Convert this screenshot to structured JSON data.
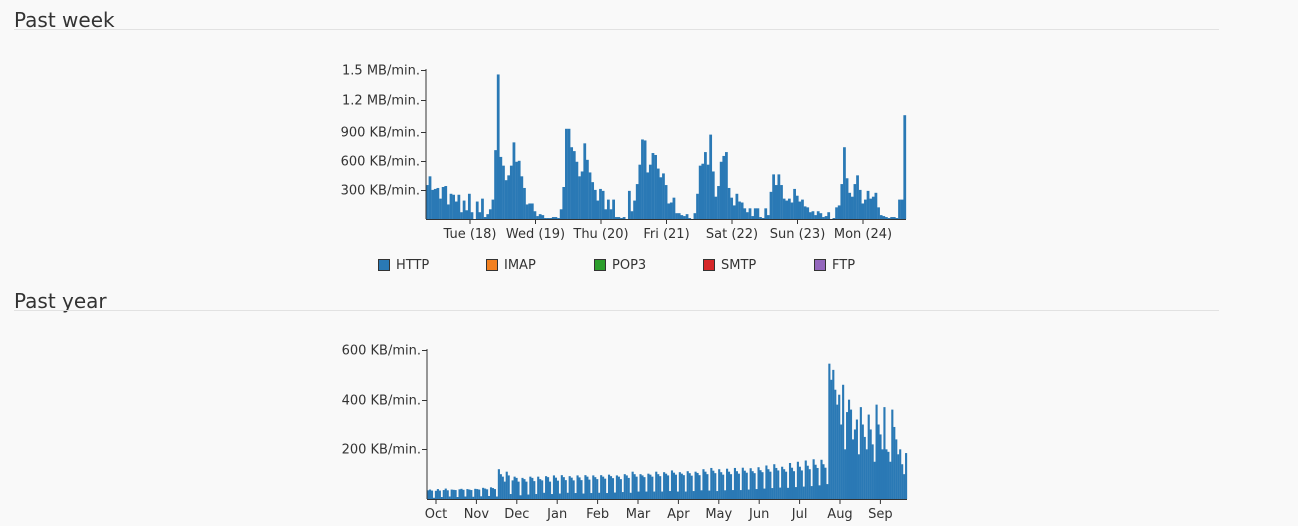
{
  "sections": [
    {
      "title": "Past week"
    },
    {
      "title": "Past year"
    }
  ],
  "legend": [
    {
      "label": "HTTP",
      "color": "#2a79b5"
    },
    {
      "label": "IMAP",
      "color": "#f28020"
    },
    {
      "label": "POP3",
      "color": "#2c9e2c"
    },
    {
      "label": "SMTP",
      "color": "#d62728"
    },
    {
      "label": "FTP",
      "color": "#9467bd"
    }
  ],
  "chart_data": [
    {
      "type": "bar",
      "title": "Past week",
      "series": [
        {
          "name": "HTTP",
          "color": "#2a79b5"
        }
      ],
      "unit_kb_per_min": true,
      "ylim": [
        0,
        1536
      ],
      "y_ticks": [
        {
          "value": 300,
          "label": "300 KB/min."
        },
        {
          "value": 600,
          "label": "600 KB/min."
        },
        {
          "value": 900,
          "label": "900 KB/min."
        },
        {
          "value": 1228.8,
          "label": "1.2 MB/min."
        },
        {
          "value": 1536,
          "label": "1.5 MB/min."
        }
      ],
      "x_ticks": [
        "Tue (18)",
        "Wed (19)",
        "Thu (20)",
        "Fri (21)",
        "Sat (22)",
        "Sun (23)",
        "Mon (24)"
      ],
      "values": [
        350,
        440,
        300,
        310,
        320,
        210,
        330,
        340,
        150,
        260,
        250,
        180,
        250,
        70,
        190,
        90,
        260,
        70,
        0,
        180,
        70,
        210,
        20,
        50,
        100,
        200,
        710,
        1490,
        640,
        550,
        400,
        450,
        550,
        790,
        590,
        600,
        440,
        320,
        150,
        160,
        160,
        80,
        30,
        50,
        40,
        10,
        10,
        10,
        20,
        20,
        10,
        100,
        330,
        930,
        930,
        740,
        700,
        590,
        440,
        490,
        780,
        610,
        480,
        380,
        300,
        190,
        310,
        290,
        100,
        200,
        100,
        200,
        20,
        20,
        10,
        20,
        0,
        290,
        80,
        190,
        360,
        560,
        820,
        810,
        480,
        560,
        680,
        660,
        520,
        430,
        470,
        350,
        160,
        170,
        220,
        60,
        60,
        40,
        30,
        50,
        10,
        0,
        60,
        260,
        550,
        570,
        690,
        560,
        870,
        490,
        230,
        340,
        590,
        650,
        690,
        320,
        220,
        140,
        260,
        180,
        170,
        110,
        70,
        110,
        30,
        110,
        110,
        20,
        10,
        110,
        40,
        280,
        460,
        350,
        460,
        350,
        210,
        190,
        210,
        170,
        310,
        240,
        180,
        200,
        130,
        120,
        70,
        80,
        40,
        80,
        60,
        20,
        30,
        70,
        0,
        10,
        120,
        140,
        360,
        740,
        420,
        270,
        230,
        360,
        450,
        300,
        160,
        200,
        290,
        210,
        230,
        270,
        120,
        40,
        30,
        20,
        10,
        20,
        20,
        10,
        200,
        200,
        1070
      ]
    },
    {
      "type": "bar",
      "title": "Past year",
      "series": [
        {
          "name": "HTTP",
          "color": "#2a79b5"
        }
      ],
      "ylim": [
        0,
        600
      ],
      "y_ticks": [
        {
          "value": 200,
          "label": "200 KB/min."
        },
        {
          "value": 400,
          "label": "400 KB/min."
        },
        {
          "value": 600,
          "label": "600 KB/min."
        }
      ],
      "x_ticks": [
        "Oct",
        "Nov",
        "Dec",
        "Jan",
        "Feb",
        "Mar",
        "Apr",
        "May",
        "Jun",
        "Jul",
        "Aug",
        "Sep"
      ],
      "values": [
        35,
        38,
        34,
        5,
        33,
        40,
        34,
        8,
        36,
        42,
        35,
        10,
        38,
        37,
        36,
        8,
        39,
        41,
        37,
        10,
        40,
        38,
        36,
        9,
        41,
        40,
        38,
        11,
        45,
        42,
        39,
        12,
        47,
        44,
        40,
        10,
        120,
        100,
        90,
        70,
        110,
        95,
        20,
        75,
        90,
        85,
        70,
        15,
        85,
        80,
        70,
        18,
        90,
        85,
        72,
        20,
        90,
        80,
        75,
        25,
        92,
        88,
        70,
        20,
        95,
        86,
        74,
        22,
        96,
        88,
        76,
        25,
        92,
        86,
        75,
        24,
        95,
        87,
        76,
        22,
        96,
        90,
        78,
        24,
        95,
        88,
        80,
        25,
        96,
        90,
        82,
        24,
        98,
        92,
        84,
        26,
        95,
        90,
        80,
        28,
        100,
        95,
        85,
        25,
        110,
        100,
        90,
        30,
        100,
        95,
        88,
        30,
        102,
        98,
        90,
        30,
        110,
        100,
        92,
        30,
        108,
        102,
        95,
        32,
        115,
        106,
        98,
        30,
        108,
        102,
        96,
        30,
        112,
        104,
        94,
        32,
        110,
        105,
        96,
        35,
        120,
        110,
        100,
        34,
        125,
        114,
        104,
        32,
        120,
        108,
        98,
        35,
        122,
        110,
        100,
        36,
        125,
        112,
        102,
        36,
        126,
        114,
        106,
        38,
        124,
        112,
        104,
        40,
        128,
        116,
        108,
        42,
        135,
        120,
        110,
        44,
        140,
        125,
        115,
        46,
        130,
        120,
        110,
        45,
        145,
        126,
        112,
        48,
        150,
        130,
        115,
        50,
        155,
        134,
        120,
        52,
        160,
        138,
        125,
        55,
        158,
        140,
        126,
        60,
        545,
        480,
        520,
        440,
        380,
        420,
        300,
        460,
        200,
        350,
        400,
        360,
        240,
        280,
        320,
        180,
        370,
        300,
        250,
        200,
        340,
        280,
        220,
        150,
        380,
        300,
        260,
        200,
        370,
        200,
        190,
        150,
        360,
        290,
        240,
        180,
        200,
        140,
        100,
        185
      ]
    }
  ]
}
